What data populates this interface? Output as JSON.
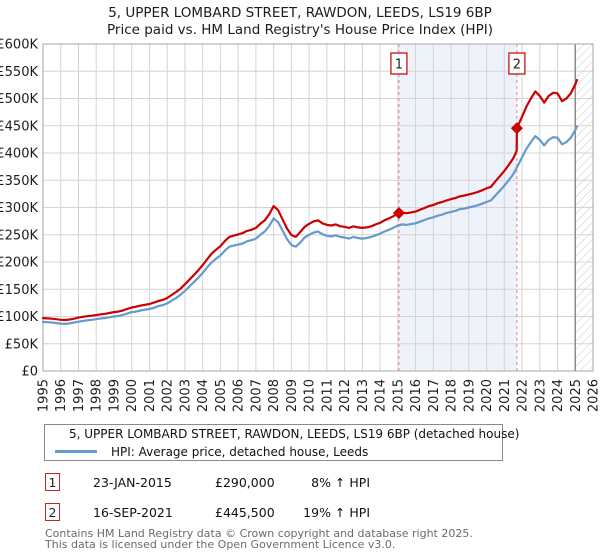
{
  "title": {
    "line1": "5, UPPER LOMBARD STREET, RAWDON, LEEDS, LS19 6BP",
    "line2": "Price paid vs. HM Land Registry's House Price Index (HPI)"
  },
  "colors": {
    "property": "#cc0000",
    "hpi": "#6699cc",
    "shade": "#eef2fa",
    "sale_dash": "#f47c7c",
    "sale_box_border": "#cc2222",
    "grid": "#d4d4d4",
    "plot_border": "#a6a6a6",
    "hatch": "#c9c9c9",
    "hatch_edge": "#8c8c8c",
    "tick_text": "#1c1c1c"
  },
  "chart_data": {
    "type": "line",
    "title": "5, UPPER LOMBARD STREET, RAWDON, LEEDS, LS19 6BP — Price paid vs. HM Land Registry's House Price Index (HPI)",
    "x_range": [
      1995,
      2026
    ],
    "y_range": [
      0,
      600000
    ],
    "grid": true,
    "legend_position": "bottom",
    "y_ticks": [
      {
        "value": 0,
        "label": "£0"
      },
      {
        "value": 50000,
        "label": "£50K"
      },
      {
        "value": 100000,
        "label": "£100K"
      },
      {
        "value": 150000,
        "label": "£150K"
      },
      {
        "value": 200000,
        "label": "£200K"
      },
      {
        "value": 250000,
        "label": "£250K"
      },
      {
        "value": 300000,
        "label": "£300K"
      },
      {
        "value": 350000,
        "label": "£350K"
      },
      {
        "value": 400000,
        "label": "£400K"
      },
      {
        "value": 450000,
        "label": "£450K"
      },
      {
        "value": 500000,
        "label": "£500K"
      },
      {
        "value": 550000,
        "label": "£550K"
      },
      {
        "value": 600000,
        "label": "£600K"
      }
    ],
    "x_ticks": [
      "1995",
      "1996",
      "1997",
      "1998",
      "1999",
      "2000",
      "2001",
      "2002",
      "2003",
      "2004",
      "2005",
      "2006",
      "2007",
      "2008",
      "2009",
      "2010",
      "2011",
      "2012",
      "2013",
      "2014",
      "2015",
      "2016",
      "2017",
      "2018",
      "2019",
      "2020",
      "2021",
      "2022",
      "2023",
      "2024",
      "2025",
      "2026"
    ],
    "shade_between_years": [
      2015.06,
      2021.71
    ],
    "hatch_from_year": 2025,
    "series": [
      {
        "name": "5, UPPER LOMBARD STREET, RAWDON, LEEDS, LS19 6BP (detached house)",
        "color": "#cc0000",
        "points": [
          [
            1995.0,
            97000
          ],
          [
            1995.25,
            96500
          ],
          [
            1995.5,
            96000
          ],
          [
            1995.75,
            95000
          ],
          [
            1996.0,
            94000
          ],
          [
            1996.25,
            93500
          ],
          [
            1996.5,
            94500
          ],
          [
            1996.75,
            96000
          ],
          [
            1997.0,
            98000
          ],
          [
            1997.25,
            99500
          ],
          [
            1997.5,
            100500
          ],
          [
            1997.75,
            101500
          ],
          [
            1998.0,
            102500
          ],
          [
            1998.25,
            104000
          ],
          [
            1998.5,
            105000
          ],
          [
            1998.75,
            106500
          ],
          [
            1999.0,
            108000
          ],
          [
            1999.25,
            109000
          ],
          [
            1999.5,
            111000
          ],
          [
            1999.75,
            114000
          ],
          [
            2000.0,
            116500
          ],
          [
            2000.25,
            118000
          ],
          [
            2000.5,
            120000
          ],
          [
            2000.75,
            121500
          ],
          [
            2001.0,
            123000
          ],
          [
            2001.25,
            125500
          ],
          [
            2001.5,
            128500
          ],
          [
            2001.75,
            130500
          ],
          [
            2002.0,
            134000
          ],
          [
            2002.25,
            139500
          ],
          [
            2002.5,
            145000
          ],
          [
            2002.75,
            151000
          ],
          [
            2003.0,
            159000
          ],
          [
            2003.25,
            167500
          ],
          [
            2003.5,
            176000
          ],
          [
            2003.75,
            184500
          ],
          [
            2004.0,
            194500
          ],
          [
            2004.25,
            205000
          ],
          [
            2004.5,
            215000
          ],
          [
            2004.75,
            222500
          ],
          [
            2005.0,
            229000
          ],
          [
            2005.25,
            238500
          ],
          [
            2005.5,
            246000
          ],
          [
            2005.75,
            248500
          ],
          [
            2006.0,
            250500
          ],
          [
            2006.25,
            253000
          ],
          [
            2006.5,
            257000
          ],
          [
            2006.75,
            259000
          ],
          [
            2007.0,
            262500
          ],
          [
            2007.25,
            270000
          ],
          [
            2007.5,
            276500
          ],
          [
            2007.75,
            287500
          ],
          [
            2008.0,
            302500
          ],
          [
            2008.25,
            295000
          ],
          [
            2008.5,
            278500
          ],
          [
            2008.75,
            261500
          ],
          [
            2009.0,
            249500
          ],
          [
            2009.25,
            246000
          ],
          [
            2009.5,
            255000
          ],
          [
            2009.75,
            264500
          ],
          [
            2010.0,
            270000
          ],
          [
            2010.25,
            274500
          ],
          [
            2010.5,
            276500
          ],
          [
            2010.75,
            271000
          ],
          [
            2011.0,
            268000
          ],
          [
            2011.25,
            267000
          ],
          [
            2011.5,
            269000
          ],
          [
            2011.75,
            265500
          ],
          [
            2012.0,
            264500
          ],
          [
            2012.25,
            262500
          ],
          [
            2012.5,
            265500
          ],
          [
            2012.75,
            263500
          ],
          [
            2013.0,
            262500
          ],
          [
            2013.25,
            263500
          ],
          [
            2013.5,
            265500
          ],
          [
            2013.75,
            269000
          ],
          [
            2014.0,
            272000
          ],
          [
            2014.25,
            276500
          ],
          [
            2014.5,
            280000
          ],
          [
            2014.75,
            284000
          ],
          [
            2015.06,
            290000
          ],
          [
            2015.25,
            290500
          ],
          [
            2015.5,
            289500
          ],
          [
            2015.75,
            291000
          ],
          [
            2016.0,
            292500
          ],
          [
            2016.25,
            296000
          ],
          [
            2016.5,
            299000
          ],
          [
            2016.75,
            302500
          ],
          [
            2017.0,
            304500
          ],
          [
            2017.25,
            308000
          ],
          [
            2017.5,
            310000
          ],
          [
            2017.75,
            313000
          ],
          [
            2018.0,
            315500
          ],
          [
            2018.25,
            317500
          ],
          [
            2018.5,
            320500
          ],
          [
            2018.75,
            322000
          ],
          [
            2019.0,
            324000
          ],
          [
            2019.25,
            326000
          ],
          [
            2019.5,
            328500
          ],
          [
            2019.75,
            331500
          ],
          [
            2020.0,
            335000
          ],
          [
            2020.25,
            338000
          ],
          [
            2020.5,
            348000
          ],
          [
            2020.75,
            357500
          ],
          [
            2021.0,
            367000
          ],
          [
            2021.25,
            378000
          ],
          [
            2021.5,
            390000
          ],
          [
            2021.7,
            404000
          ],
          [
            2021.71,
            445500
          ],
          [
            2022.0,
            466500
          ],
          [
            2022.25,
            485500
          ],
          [
            2022.5,
            500000
          ],
          [
            2022.75,
            513000
          ],
          [
            2023.0,
            504500
          ],
          [
            2023.25,
            492500
          ],
          [
            2023.5,
            504500
          ],
          [
            2023.75,
            510500
          ],
          [
            2024.0,
            509500
          ],
          [
            2024.25,
            495000
          ],
          [
            2024.5,
            500000
          ],
          [
            2024.75,
            509500
          ],
          [
            2025.0,
            526000
          ],
          [
            2025.1,
            534000
          ]
        ]
      },
      {
        "name": "HPI: Average price, detached house, Leeds",
        "color": "#6699cc",
        "points": [
          [
            1995.0,
            90000
          ],
          [
            1995.25,
            89500
          ],
          [
            1995.5,
            89000
          ],
          [
            1995.75,
            88000
          ],
          [
            1996.0,
            87000
          ],
          [
            1996.25,
            86500
          ],
          [
            1996.5,
            87500
          ],
          [
            1996.75,
            89000
          ],
          [
            1997.0,
            90500
          ],
          [
            1997.25,
            92000
          ],
          [
            1997.5,
            93000
          ],
          [
            1997.75,
            94000
          ],
          [
            1998.0,
            95000
          ],
          [
            1998.25,
            96500
          ],
          [
            1998.5,
            97000
          ],
          [
            1998.75,
            98500
          ],
          [
            1999.0,
            100000
          ],
          [
            1999.25,
            101000
          ],
          [
            1999.5,
            103000
          ],
          [
            1999.75,
            105500
          ],
          [
            2000.0,
            108000
          ],
          [
            2000.25,
            109000
          ],
          [
            2000.5,
            111000
          ],
          [
            2000.75,
            112500
          ],
          [
            2001.0,
            114000
          ],
          [
            2001.25,
            116000
          ],
          [
            2001.5,
            119000
          ],
          [
            2001.75,
            121000
          ],
          [
            2002.0,
            124000
          ],
          [
            2002.25,
            129000
          ],
          [
            2002.5,
            134000
          ],
          [
            2002.75,
            140000
          ],
          [
            2003.0,
            147000
          ],
          [
            2003.25,
            155000
          ],
          [
            2003.5,
            163000
          ],
          [
            2003.75,
            171000
          ],
          [
            2004.0,
            180000
          ],
          [
            2004.25,
            190000
          ],
          [
            2004.5,
            199000
          ],
          [
            2004.75,
            206000
          ],
          [
            2005.0,
            212000
          ],
          [
            2005.25,
            221000
          ],
          [
            2005.5,
            228000
          ],
          [
            2005.75,
            230000
          ],
          [
            2006.0,
            232000
          ],
          [
            2006.25,
            234000
          ],
          [
            2006.5,
            238000
          ],
          [
            2006.75,
            240000
          ],
          [
            2007.0,
            243000
          ],
          [
            2007.25,
            250000
          ],
          [
            2007.5,
            256000
          ],
          [
            2007.75,
            266000
          ],
          [
            2008.0,
            280000
          ],
          [
            2008.25,
            273000
          ],
          [
            2008.5,
            258000
          ],
          [
            2008.75,
            242000
          ],
          [
            2009.0,
            231000
          ],
          [
            2009.25,
            228000
          ],
          [
            2009.5,
            236000
          ],
          [
            2009.75,
            245000
          ],
          [
            2010.0,
            250000
          ],
          [
            2010.25,
            254000
          ],
          [
            2010.5,
            256000
          ],
          [
            2010.75,
            251000
          ],
          [
            2011.0,
            248000
          ],
          [
            2011.25,
            247000
          ],
          [
            2011.5,
            249000
          ],
          [
            2011.75,
            246000
          ],
          [
            2012.0,
            245000
          ],
          [
            2012.25,
            243000
          ],
          [
            2012.5,
            246000
          ],
          [
            2012.75,
            244000
          ],
          [
            2013.0,
            243000
          ],
          [
            2013.25,
            244000
          ],
          [
            2013.5,
            246000
          ],
          [
            2013.75,
            249000
          ],
          [
            2014.0,
            252000
          ],
          [
            2014.25,
            256000
          ],
          [
            2014.5,
            259000
          ],
          [
            2014.75,
            263000
          ],
          [
            2015.0,
            267000
          ],
          [
            2015.25,
            269000
          ],
          [
            2015.5,
            268000
          ],
          [
            2015.75,
            269500
          ],
          [
            2016.0,
            271000
          ],
          [
            2016.25,
            274000
          ],
          [
            2016.5,
            277000
          ],
          [
            2016.75,
            280000
          ],
          [
            2017.0,
            282000
          ],
          [
            2017.25,
            285000
          ],
          [
            2017.5,
            287000
          ],
          [
            2017.75,
            290000
          ],
          [
            2018.0,
            292000
          ],
          [
            2018.25,
            294000
          ],
          [
            2018.5,
            297000
          ],
          [
            2018.75,
            298000
          ],
          [
            2019.0,
            300000
          ],
          [
            2019.25,
            302000
          ],
          [
            2019.5,
            304000
          ],
          [
            2019.75,
            307000
          ],
          [
            2020.0,
            310000
          ],
          [
            2020.25,
            313000
          ],
          [
            2020.5,
            322000
          ],
          [
            2020.75,
            331000
          ],
          [
            2021.0,
            340000
          ],
          [
            2021.25,
            350000
          ],
          [
            2021.5,
            361000
          ],
          [
            2021.71,
            374000
          ],
          [
            2022.0,
            392000
          ],
          [
            2022.25,
            408000
          ],
          [
            2022.5,
            420000
          ],
          [
            2022.75,
            431000
          ],
          [
            2023.0,
            424000
          ],
          [
            2023.25,
            414000
          ],
          [
            2023.5,
            424000
          ],
          [
            2023.75,
            429000
          ],
          [
            2024.0,
            428000
          ],
          [
            2024.25,
            416000
          ],
          [
            2024.5,
            420000
          ],
          [
            2024.75,
            428000
          ],
          [
            2025.0,
            442000
          ],
          [
            2025.1,
            449000
          ]
        ]
      }
    ],
    "sales": [
      {
        "label": "1",
        "year": 2015.06,
        "price": 290000,
        "date": "23-JAN-2015",
        "price_label": "£290,000",
        "vs_hpi": "8% ↑ HPI"
      },
      {
        "label": "2",
        "year": 2021.71,
        "price": 445500,
        "date": "16-SEP-2021",
        "price_label": "£445,500",
        "vs_hpi": "19% ↑ HPI"
      }
    ]
  },
  "footer": {
    "line1": "Contains HM Land Registry data © Crown copyright and database right 2025.",
    "line2": "This data is licensed under the Open Government Licence v3.0."
  }
}
